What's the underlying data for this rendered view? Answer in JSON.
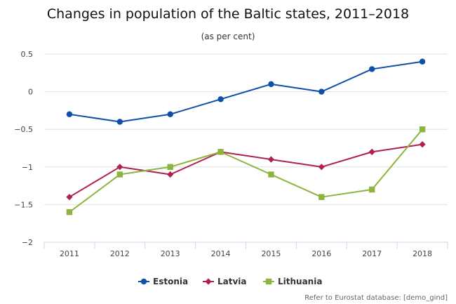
{
  "chart_data": {
    "type": "line",
    "title": "Changes in population of the Baltic states, 2011–2018",
    "subtitle": "(as per cent)",
    "xlabel": "",
    "ylabel": "",
    "categories": [
      "2011",
      "2012",
      "2013",
      "2014",
      "2015",
      "2016",
      "2017",
      "2018"
    ],
    "ylim": [
      -2,
      0.5
    ],
    "yticks": [
      0.5,
      0,
      -0.5,
      -1,
      -1.5,
      -2
    ],
    "ytick_labels": [
      "0.5",
      "0",
      "−0.5",
      "−1",
      "−1.5",
      "−2"
    ],
    "grid": true,
    "legend_position": "bottom",
    "series": [
      {
        "name": "Estonia",
        "color": "#0f4fa8",
        "marker": "circle",
        "values": [
          -0.3,
          -0.4,
          -0.3,
          -0.1,
          0.1,
          0.0,
          0.3,
          0.4
        ]
      },
      {
        "name": "Latvia",
        "color": "#b0214e",
        "marker": "diamond",
        "values": [
          -1.4,
          -1.0,
          -1.1,
          -0.8,
          -0.9,
          -1.0,
          -0.8,
          -0.7
        ]
      },
      {
        "name": "Lithuania",
        "color": "#8db43e",
        "marker": "square",
        "values": [
          -1.6,
          -1.1,
          -1.0,
          -0.8,
          -1.1,
          -1.4,
          -1.3,
          -0.5
        ]
      }
    ],
    "credits": "Refer to Eurostat database: [demo_gind]"
  }
}
